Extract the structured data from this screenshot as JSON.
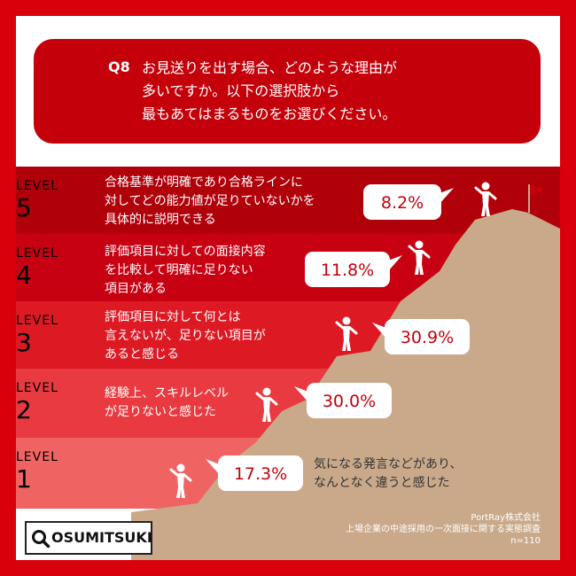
{
  "question": {
    "number": "Q8",
    "lines": [
      "お見送りを出す場合、どのような理由が",
      "多いですか。以下の選択肢から",
      "最もあてはまるものをお選びください。"
    ]
  },
  "chart_data": {
    "type": "bar",
    "title": "",
    "categories": [
      "LEVEL 5",
      "LEVEL 4",
      "LEVEL 3",
      "LEVEL 2",
      "LEVEL 1"
    ],
    "series": [
      {
        "values": [
          8.2,
          11.8,
          30.9,
          30.0,
          17.3
        ]
      }
    ],
    "unit": "%",
    "levels": [
      {
        "word": "LEVEL",
        "num": "5",
        "value": 8.2,
        "label": "8.2%",
        "reason": [
          "合格基準が明確であり合格ラインに",
          "対してどの能力値が足りていないかを",
          "具体的に説明できる"
        ]
      },
      {
        "word": "LEVEL",
        "num": "4",
        "value": 11.8,
        "label": "11.8%",
        "reason": [
          "評価項目に対しての面接内容",
          "を比較して明確に足りない",
          "項目がある"
        ]
      },
      {
        "word": "LEVEL",
        "num": "3",
        "value": 30.9,
        "label": "30.9%",
        "reason": [
          "評価項目に対して何とは",
          "言えないが、足りない項目が",
          "あると感じる"
        ]
      },
      {
        "word": "LEVEL",
        "num": "2",
        "value": 30.0,
        "label": "30.0%",
        "reason": [
          "経験上、スキルレベル",
          "が足りないと感じた"
        ]
      },
      {
        "word": "LEVEL",
        "num": "1",
        "value": 17.3,
        "label": "17.3%",
        "reason": [
          "気になる発言などがあり、",
          "なんとなく違うと感じた"
        ]
      }
    ]
  },
  "logo": {
    "text": "OSUMITSUKI"
  },
  "source": {
    "lines": [
      "PortRay株式会社",
      "上場企業の中途採用の一次面接に関する実態調査",
      "n=110"
    ]
  },
  "colors": {
    "frame": "#d9000b",
    "question_box": "#c4000a",
    "band5": "#b0000a",
    "band4": "#c70012",
    "band3": "#dd1a24",
    "band2": "#e83a40",
    "band1": "#ef6462",
    "mountain": "#c9a98a",
    "bubble_text": "#c4000a"
  }
}
